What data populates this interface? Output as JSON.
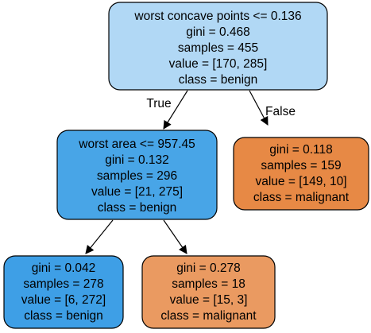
{
  "nodes": {
    "root": {
      "lines": [
        "worst concave points <= 0.136",
        "gini = 0.468",
        "samples = 455",
        "value = [170, 285]",
        "class = benign"
      ],
      "fill": "#b1d8f5"
    },
    "left": {
      "lines": [
        "worst area <= 957.45",
        "gini = 0.132",
        "samples = 296",
        "value = [21, 275]",
        "class = benign"
      ],
      "fill": "#48a5e7"
    },
    "right": {
      "lines": [
        "gini = 0.118",
        "samples = 159",
        "value = [149, 10]",
        "class = malignant"
      ],
      "fill": "#e78945"
    },
    "left_left": {
      "lines": [
        "gini = 0.042",
        "samples = 278",
        "value = [6, 272]",
        "class = benign"
      ],
      "fill": "#3e9fe6"
    },
    "left_right": {
      "lines": [
        "gini = 0.278",
        "samples = 18",
        "value = [15, 3]",
        "class = malignant"
      ],
      "fill": "#ea9a61"
    }
  },
  "edge_labels": {
    "true": "True",
    "false": "False"
  }
}
